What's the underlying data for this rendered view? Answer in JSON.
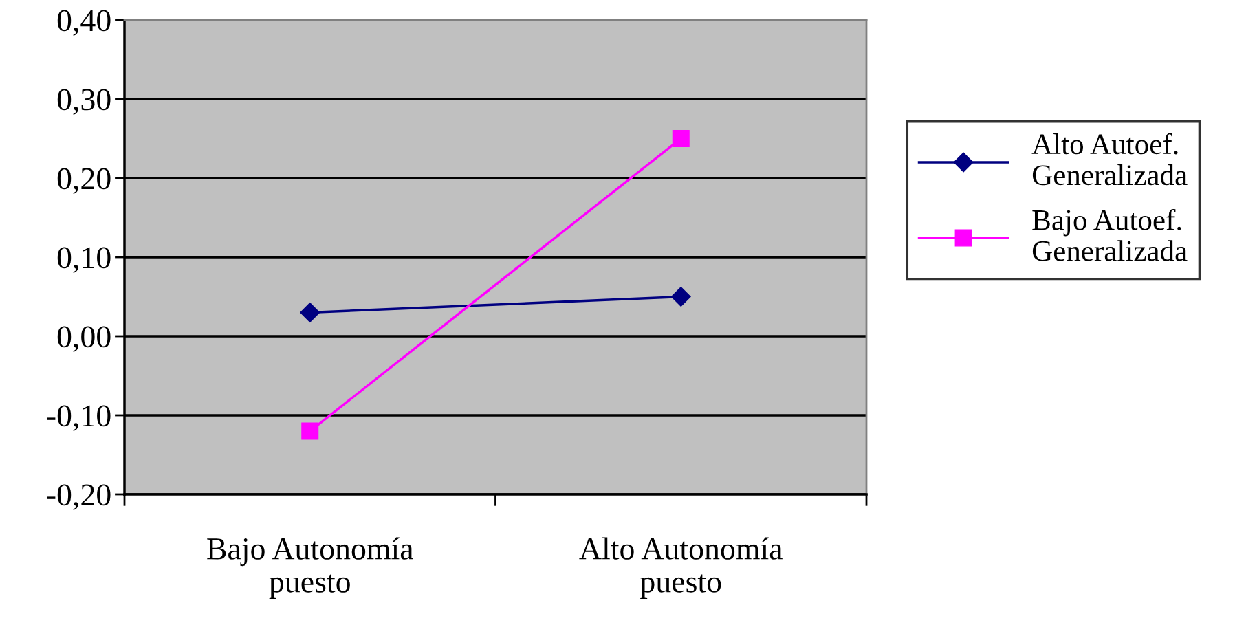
{
  "chart_data": {
    "type": "line",
    "categories": [
      "Bajo Autonomía\npuesto",
      "Alto Autonomía\npuesto"
    ],
    "series": [
      {
        "name": "Alto Autoef.\nGeneralizada",
        "color": "#000080",
        "values": [
          0.03,
          0.05
        ],
        "marker": "diamond"
      },
      {
        "name": "Bajo Autoef.\nGeneralizada",
        "color": "#ff00ff",
        "values": [
          -0.12,
          0.25
        ],
        "marker": "square"
      }
    ],
    "ylim": [
      -0.2,
      0.4
    ],
    "yticks": [
      {
        "value": -0.2,
        "label": "-0,20"
      },
      {
        "value": -0.1,
        "label": "-0,10"
      },
      {
        "value": 0,
        "label": "0,00"
      },
      {
        "value": 0.1,
        "label": "0,10"
      },
      {
        "value": 0.2,
        "label": "0,20"
      },
      {
        "value": 0.3,
        "label": "0,30"
      },
      {
        "value": 0.4,
        "label": "0,40"
      }
    ],
    "grid": "y",
    "legend": "right",
    "line_style": "solid"
  }
}
